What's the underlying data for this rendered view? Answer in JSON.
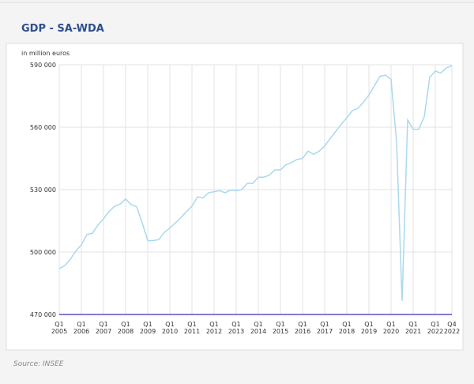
{
  "chart_data": {
    "type": "line",
    "title": "GDP - SA-WDA",
    "y_axis_label": "in million euros",
    "source": "Source: INSEE",
    "categories": [
      "Q1 2005",
      null,
      null,
      null,
      "Q1 2006",
      null,
      null,
      null,
      "Q1 2007",
      null,
      null,
      null,
      "Q1 2008",
      null,
      null,
      null,
      "Q1 2009",
      null,
      null,
      null,
      "Q1 2010",
      null,
      null,
      null,
      "Q1 2011",
      null,
      null,
      null,
      "Q1 2012",
      null,
      null,
      null,
      "Q1 2013",
      null,
      null,
      null,
      "Q1 2014",
      null,
      null,
      null,
      "Q1 2015",
      null,
      null,
      null,
      "Q1 2016",
      null,
      null,
      null,
      "Q1 2017",
      null,
      null,
      null,
      "Q1 2018",
      null,
      null,
      null,
      "Q1 2019",
      null,
      null,
      null,
      "Q1 2020",
      null,
      null,
      null,
      "Q1 2021",
      null,
      null,
      null,
      "Q1 2022",
      null,
      null,
      "Q4 2022"
    ],
    "series": [
      {
        "name": "GDP",
        "color": "#a9d9ee",
        "values": [
          492000,
          493500,
          496500,
          500500,
          503500,
          508500,
          509000,
          513000,
          516000,
          519500,
          522000,
          523000,
          525500,
          522800,
          521800,
          514000,
          505500,
          505500,
          506000,
          509500,
          511500,
          514000,
          516500,
          519500,
          522000,
          526500,
          526000,
          528500,
          529000,
          529500,
          528500,
          529800,
          529500,
          530000,
          533000,
          533000,
          536000,
          536000,
          537000,
          539500,
          539500,
          542000,
          543000,
          544500,
          545000,
          548500,
          547000,
          548500,
          551000,
          554500,
          558000,
          561500,
          564500,
          568000,
          569000,
          572000,
          575500,
          580000,
          584500,
          585000,
          583000,
          553000,
          476500,
          563500,
          559000,
          559000,
          565000,
          584000,
          587000,
          586000,
          588500,
          589500
        ]
      }
    ],
    "ylim": [
      470000,
      590000
    ],
    "yticks": [
      {
        "value": 470000,
        "label": "470 000"
      },
      {
        "value": 500000,
        "label": "500 000"
      },
      {
        "value": 530000,
        "label": "530 000"
      },
      {
        "value": 560000,
        "label": "560 000"
      },
      {
        "value": 590000,
        "label": "590 000"
      }
    ],
    "grid": true
  }
}
